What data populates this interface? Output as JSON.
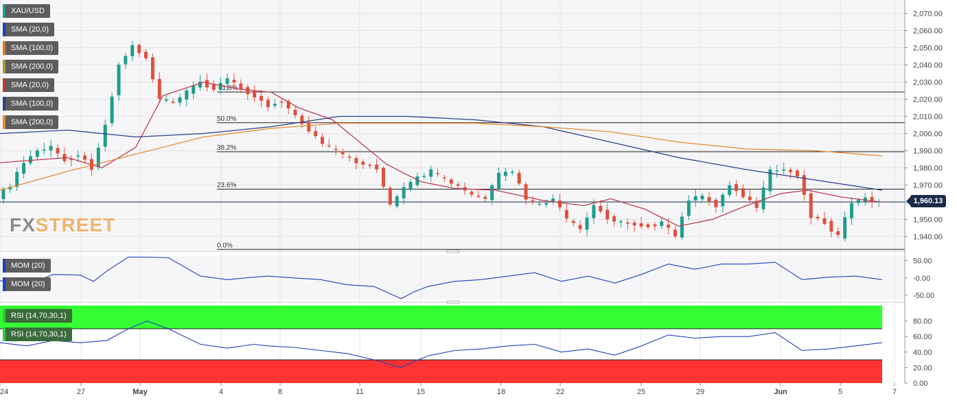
{
  "symbol": "XAU/USD",
  "main_legend": [
    {
      "label": "SMA (20,0)",
      "color": "#1f3fbf"
    },
    {
      "label": "SMA (100,0)",
      "color": "#e07a1a"
    },
    {
      "label": "SMA (200,0)",
      "color": "#a89a2a"
    },
    {
      "label": "SMA (20,0)",
      "color": "#c0392b"
    },
    {
      "label": "SMA (100,0)",
      "color": "#2c3e8c"
    },
    {
      "label": "SMA (200,0)",
      "color": "#e88a2a"
    }
  ],
  "mom_legend": [
    {
      "label": "MOM (20)",
      "color": "#1f3fbf"
    },
    {
      "label": "MOM (20)",
      "color": "#1f3fbf"
    }
  ],
  "rsi_legend": [
    {
      "label": "RSI (14,70,30,1)",
      "color": "#2ecc40"
    },
    {
      "label": "RSI (14,70,30,1)",
      "color": "#2ecc40"
    }
  ],
  "watermark": {
    "fx": "FX",
    "street": "STREET"
  },
  "last_price": "1,960.13",
  "colors": {
    "bull": "#1e9e8c",
    "bear": "#e0503c",
    "sma20": "#c03a50",
    "sma100": "#2c3e8c",
    "sma200": "#e88a2a",
    "mom": "#1f3fbf",
    "rsi": "#1f3fbf",
    "overbought": "#33ff33",
    "oversold": "#ff3333"
  },
  "chart_data": {
    "type": "candlestick",
    "title": "XAU/USD",
    "x_ticks": [
      "24",
      "27",
      "May",
      "4",
      "8",
      "11",
      "15",
      "18",
      "22",
      "25",
      "29",
      "Jun",
      "5",
      "7"
    ],
    "price_axis": {
      "ticks": [
        "2,070.00",
        "2,060.00",
        "2,050.00",
        "2,040.00",
        "2,030.00",
        "2,020.00",
        "2,010.00",
        "2,000.00",
        "1,990.00",
        "1,980.00",
        "1,970.00",
        "1,960.00",
        "1,950.00",
        "1,940.00"
      ],
      "range": [
        1933,
        2077
      ]
    },
    "fibonacci": [
      {
        "label": "61.8%",
        "value": 2024.2
      },
      {
        "label": "50.0%",
        "value": 2006.3
      },
      {
        "label": "38.2%",
        "value": 1989.4
      },
      {
        "label": "23.6%",
        "value": 1967.6
      },
      {
        "label": "0.0%",
        "value": 1932.5
      }
    ],
    "last_price": 1960.13,
    "close_path": [
      [
        0,
        1963
      ],
      [
        8,
        1970
      ],
      [
        16,
        1983
      ],
      [
        24,
        1990
      ],
      [
        32,
        1992
      ],
      [
        40,
        1984
      ],
      [
        48,
        1988
      ],
      [
        56,
        1980
      ],
      [
        64,
        2005
      ],
      [
        72,
        2040
      ],
      [
        80,
        2051
      ],
      [
        88,
        2044
      ],
      [
        96,
        2020
      ],
      [
        104,
        2018
      ],
      [
        112,
        2024
      ],
      [
        120,
        2030
      ],
      [
        128,
        2026
      ],
      [
        136,
        2032
      ],
      [
        144,
        2026
      ],
      [
        152,
        2022
      ],
      [
        160,
        2016
      ],
      [
        168,
        2019
      ],
      [
        176,
        2010
      ],
      [
        184,
        2002
      ],
      [
        192,
        1994
      ],
      [
        200,
        1990
      ],
      [
        208,
        1985
      ],
      [
        216,
        1982
      ],
      [
        224,
        1980
      ],
      [
        232,
        1958
      ],
      [
        240,
        1968
      ],
      [
        248,
        1974
      ],
      [
        256,
        1978
      ],
      [
        264,
        1973
      ],
      [
        272,
        1969
      ],
      [
        280,
        1964
      ],
      [
        288,
        1962
      ],
      [
        296,
        1976
      ],
      [
        304,
        1978
      ],
      [
        312,
        1962
      ],
      [
        320,
        1958
      ],
      [
        328,
        1962
      ],
      [
        336,
        1950
      ],
      [
        344,
        1944
      ],
      [
        352,
        1958
      ],
      [
        360,
        1951
      ],
      [
        368,
        1948
      ],
      [
        376,
        1947
      ],
      [
        384,
        1946
      ],
      [
        392,
        1948
      ],
      [
        400,
        1940
      ],
      [
        408,
        1962
      ],
      [
        416,
        1963
      ],
      [
        424,
        1958
      ],
      [
        432,
        1970
      ],
      [
        440,
        1964
      ],
      [
        448,
        1957
      ],
      [
        456,
        1978
      ],
      [
        464,
        1979
      ],
      [
        472,
        1976
      ],
      [
        480,
        1952
      ],
      [
        488,
        1948
      ],
      [
        496,
        1940
      ],
      [
        504,
        1960
      ],
      [
        512,
        1962
      ],
      [
        520,
        1960
      ]
    ],
    "sma_lines": [
      {
        "name": "SMA (20,0)",
        "points": [
          [
            0,
            1983
          ],
          [
            40,
            1986
          ],
          [
            60,
            1980
          ],
          [
            80,
            1992
          ],
          [
            96,
            2022
          ],
          [
            120,
            2030
          ],
          [
            140,
            2026
          ],
          [
            160,
            2024
          ],
          [
            176,
            2015
          ],
          [
            196,
            2008
          ],
          [
            212,
            1995
          ],
          [
            228,
            1982
          ],
          [
            248,
            1972
          ],
          [
            268,
            1968
          ],
          [
            292,
            1967
          ],
          [
            320,
            1961
          ],
          [
            344,
            1958
          ],
          [
            360,
            1962
          ],
          [
            380,
            1956
          ],
          [
            400,
            1946
          ],
          [
            420,
            1950
          ],
          [
            440,
            1958
          ],
          [
            460,
            1965
          ],
          [
            476,
            1967
          ],
          [
            496,
            1963
          ],
          [
            520,
            1960
          ]
        ]
      },
      {
        "name": "SMA (100,0)",
        "points": [
          [
            0,
            2000
          ],
          [
            40,
            2002
          ],
          [
            80,
            1998
          ],
          [
            120,
            2000
          ],
          [
            160,
            2004
          ],
          [
            200,
            2010
          ],
          [
            240,
            2010
          ],
          [
            280,
            2008
          ],
          [
            320,
            2004
          ],
          [
            360,
            1995
          ],
          [
            400,
            1986
          ],
          [
            440,
            1979
          ],
          [
            480,
            1973
          ],
          [
            520,
            1967
          ]
        ]
      },
      {
        "name": "SMA (200,0)",
        "points": [
          [
            0,
            1967
          ],
          [
            40,
            1978
          ],
          [
            80,
            1988
          ],
          [
            120,
            1998
          ],
          [
            160,
            2003
          ],
          [
            200,
            2006
          ],
          [
            240,
            2006
          ],
          [
            280,
            2006
          ],
          [
            320,
            2004
          ],
          [
            360,
            2001
          ],
          [
            400,
            1995
          ],
          [
            440,
            1991
          ],
          [
            480,
            1990
          ],
          [
            520,
            1987
          ]
        ]
      }
    ],
    "momentum": {
      "name": "MOM (20)",
      "ticks": [
        "50.00",
        "-0.00",
        "-50.00"
      ],
      "range": [
        -62,
        65
      ],
      "points": [
        [
          0,
          -8
        ],
        [
          20,
          -20
        ],
        [
          40,
          10
        ],
        [
          60,
          8
        ],
        [
          70,
          -10
        ],
        [
          80,
          20
        ],
        [
          96,
          60
        ],
        [
          110,
          60
        ],
        [
          126,
          58
        ],
        [
          150,
          5
        ],
        [
          170,
          -5
        ],
        [
          190,
          2
        ],
        [
          200,
          5
        ],
        [
          220,
          0
        ],
        [
          240,
          -5
        ],
        [
          260,
          -20
        ],
        [
          280,
          -25
        ],
        [
          300,
          -60
        ],
        [
          310,
          -40
        ],
        [
          320,
          -25
        ],
        [
          340,
          -10
        ],
        [
          360,
          -5
        ],
        [
          380,
          5
        ],
        [
          400,
          15
        ],
        [
          420,
          -10
        ],
        [
          440,
          5
        ],
        [
          460,
          -15
        ],
        [
          480,
          10
        ],
        [
          500,
          40
        ],
        [
          520,
          25
        ],
        [
          540,
          40
        ],
        [
          560,
          40
        ],
        [
          580,
          45
        ],
        [
          600,
          -5
        ],
        [
          620,
          2
        ],
        [
          640,
          5
        ],
        [
          660,
          -5
        ]
      ]
    },
    "rsi": {
      "name": "RSI (14,70,30,1)",
      "ticks": [
        "80.00",
        "60.00",
        "40.00",
        "20.00",
        "0.00"
      ],
      "range": [
        0,
        100
      ],
      "overbought": 70,
      "oversold": 30,
      "points": [
        [
          0,
          52
        ],
        [
          20,
          48
        ],
        [
          40,
          55
        ],
        [
          60,
          52
        ],
        [
          80,
          55
        ],
        [
          96,
          70
        ],
        [
          110,
          80
        ],
        [
          126,
          70
        ],
        [
          150,
          50
        ],
        [
          170,
          45
        ],
        [
          190,
          50
        ],
        [
          200,
          48
        ],
        [
          220,
          46
        ],
        [
          240,
          42
        ],
        [
          260,
          38
        ],
        [
          280,
          30
        ],
        [
          300,
          20
        ],
        [
          310,
          28
        ],
        [
          320,
          35
        ],
        [
          340,
          42
        ],
        [
          360,
          44
        ],
        [
          380,
          48
        ],
        [
          400,
          50
        ],
        [
          420,
          40
        ],
        [
          440,
          44
        ],
        [
          460,
          36
        ],
        [
          480,
          48
        ],
        [
          500,
          62
        ],
        [
          520,
          58
        ],
        [
          540,
          60
        ],
        [
          560,
          60
        ],
        [
          580,
          65
        ],
        [
          600,
          42
        ],
        [
          620,
          44
        ],
        [
          640,
          48
        ],
        [
          660,
          52
        ]
      ]
    }
  }
}
